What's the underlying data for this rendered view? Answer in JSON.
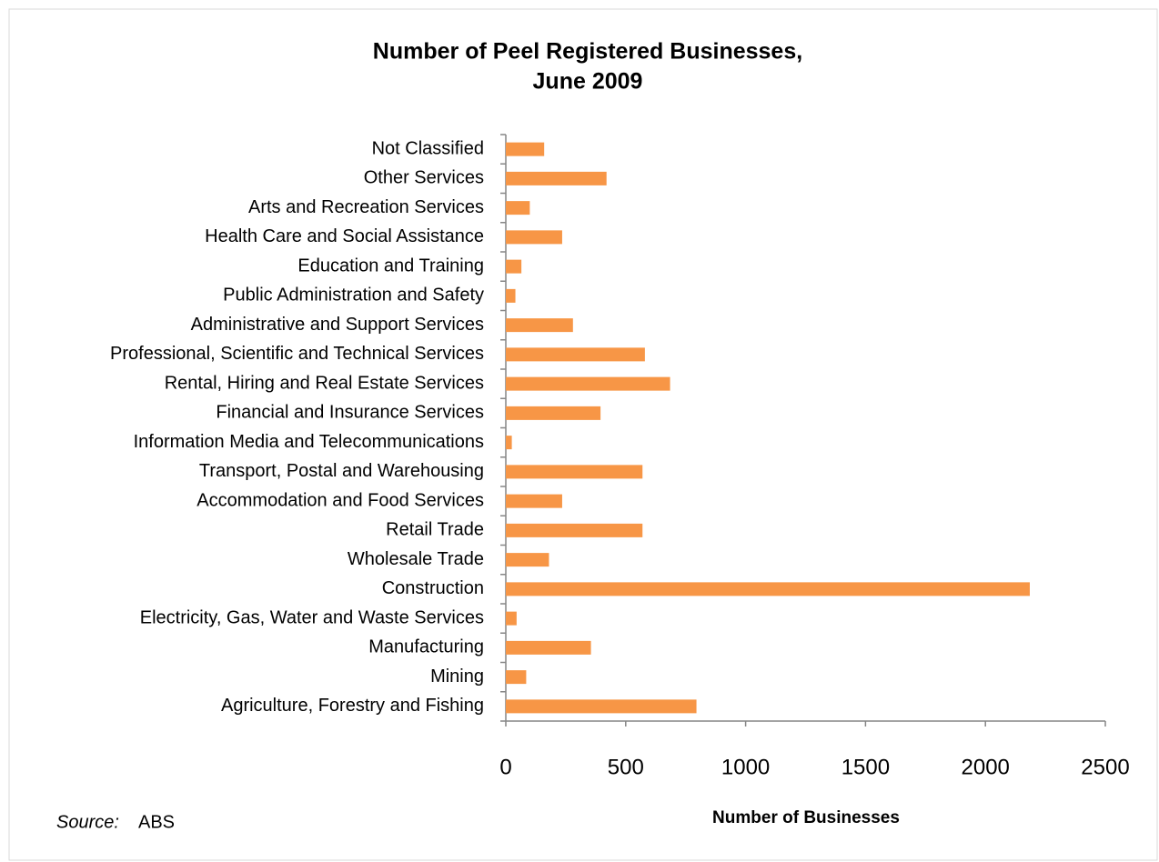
{
  "chart_data": {
    "type": "barh",
    "title": [
      "Number of Peel Registered Businesses,",
      "June 2009"
    ],
    "x_label": "Number of Businesses",
    "source_label": "Source:",
    "source": "ABS",
    "categories": [
      "Not Classified",
      "Other Services",
      "Arts and Recreation Services",
      "Health Care and Social Assistance",
      "Education and Training",
      "Public Administration and Safety",
      "Administrative and Support Services",
      "Professional, Scientific and Technical Services",
      "Rental, Hiring and Real Estate Services",
      "Financial and Insurance Services",
      "Information Media and Telecommunications",
      "Transport, Postal and Warehousing",
      "Accommodation and Food Services",
      "Retail Trade",
      "Wholesale Trade",
      "Construction",
      "Electricity, Gas, Water and Waste Services",
      "Manufacturing",
      "Mining",
      "Agriculture, Forestry and Fishing"
    ],
    "values": [
      160,
      420,
      100,
      235,
      65,
      40,
      280,
      580,
      685,
      395,
      25,
      570,
      235,
      570,
      180,
      2185,
      45,
      355,
      85,
      795
    ],
    "color": "#f79646",
    "xlim": [
      0,
      2500
    ],
    "xticks": [
      0,
      500,
      1000,
      1500,
      2000,
      2500
    ]
  }
}
